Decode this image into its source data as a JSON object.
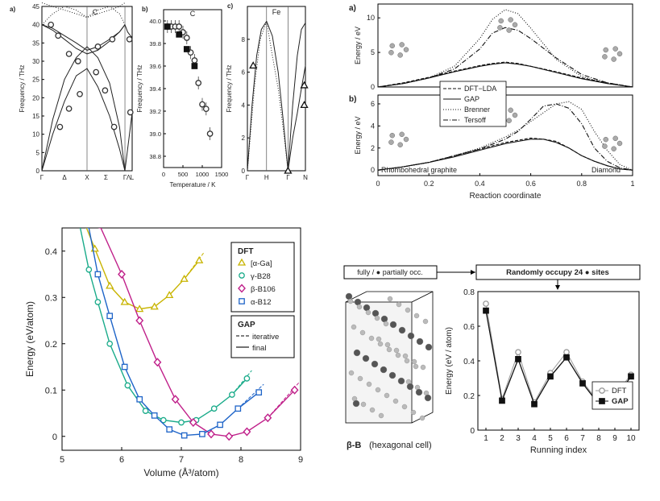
{
  "chart_data": [
    {
      "id": "phonon-C",
      "type": "line",
      "panel_label": "a)",
      "title": "C",
      "ylabel": "Frequency / THz",
      "ylim": [
        0,
        45
      ],
      "yticks": [
        "0",
        "5",
        "10",
        "15",
        "20",
        "25",
        "30",
        "35",
        "40",
        "45"
      ],
      "xticks": [
        "Γ",
        "Δ",
        "X",
        "Σ",
        "Γ",
        "Λ",
        "L"
      ],
      "kpos": [
        0,
        0.25,
        0.5,
        0.71,
        0.92,
        0.96,
        1
      ],
      "bands": [
        {
          "style": "solid",
          "x": [
            0,
            0.12,
            0.25,
            0.38,
            0.5,
            0.62,
            0.75,
            0.86,
            0.92
          ],
          "y": [
            0,
            10,
            19,
            26,
            28,
            23,
            15,
            6,
            0
          ]
        },
        {
          "style": "solid",
          "x": [
            0,
            0.12,
            0.25,
            0.38,
            0.5,
            0.62,
            0.75,
            0.86,
            0.92
          ],
          "y": [
            0,
            14,
            25,
            31,
            34,
            31,
            24,
            12,
            0
          ]
        },
        {
          "style": "solid",
          "x": [
            0,
            0.12,
            0.25,
            0.38,
            0.5,
            0.62,
            0.75,
            0.86,
            0.92
          ],
          "y": [
            40,
            39,
            37,
            35,
            33,
            34,
            36,
            38,
            40
          ]
        },
        {
          "style": "solid",
          "x": [
            0,
            0.12,
            0.25,
            0.38,
            0.5,
            0.62,
            0.75,
            0.86,
            0.92
          ],
          "y": [
            40,
            38.5,
            36,
            33.5,
            32,
            33,
            35.5,
            38,
            40
          ]
        },
        {
          "style": "solid",
          "x": [
            0.92,
            0.95,
            0.98,
            1
          ],
          "y": [
            0,
            6,
            12,
            16
          ]
        },
        {
          "style": "solid",
          "x": [
            0.92,
            0.95,
            0.98,
            1
          ],
          "y": [
            40,
            38,
            37,
            36.5
          ]
        },
        {
          "style": "dotted",
          "x": [
            0,
            0.12,
            0.25,
            0.38,
            0.5,
            0.62,
            0.75,
            0.86,
            0.92
          ],
          "y": [
            46,
            45,
            44,
            43,
            42,
            43,
            44,
            45,
            46
          ]
        },
        {
          "style": "dotted",
          "x": [
            0,
            0.12,
            0.25,
            0.38,
            0.5,
            0.62,
            0.75,
            0.86,
            0.92
          ],
          "y": [
            40,
            43,
            45,
            44,
            42,
            44,
            45,
            43,
            40
          ]
        }
      ],
      "markers": [
        {
          "x": 0.1,
          "y": 40
        },
        {
          "x": 0.18,
          "y": 37
        },
        {
          "x": 0.3,
          "y": 32
        },
        {
          "x": 0.4,
          "y": 30
        },
        {
          "x": 0.2,
          "y": 12
        },
        {
          "x": 0.3,
          "y": 17
        },
        {
          "x": 0.42,
          "y": 21
        },
        {
          "x": 0.6,
          "y": 27
        },
        {
          "x": 0.7,
          "y": 22
        },
        {
          "x": 0.8,
          "y": 12
        },
        {
          "x": 0.62,
          "y": 34
        },
        {
          "x": 0.78,
          "y": 36
        },
        {
          "x": 0.97,
          "y": 36
        },
        {
          "x": 0.98,
          "y": 16
        }
      ]
    },
    {
      "id": "freq-temp-C",
      "type": "scatter",
      "panel_label": "b)",
      "title": "C",
      "xlabel": "Temperature / K",
      "ylabel": "Frequency / THz",
      "xlim": [
        0,
        1500
      ],
      "ylim": [
        38.7,
        40.1
      ],
      "xticks": [
        "0",
        "500",
        "1000",
        "1500"
      ],
      "yticks": [
        "38.8",
        "39.0",
        "39.2",
        "39.4",
        "39.6",
        "39.8",
        "40.0"
      ],
      "series": [
        {
          "marker": "open-circle",
          "x": [
            100,
            200,
            300,
            400,
            500,
            600,
            700,
            800,
            900,
            1000,
            1100,
            1200
          ],
          "y": [
            39.95,
            39.95,
            39.95,
            39.95,
            39.9,
            39.85,
            39.72,
            39.65,
            39.45,
            39.26,
            39.22,
            39.0
          ]
        },
        {
          "marker": "filled-square",
          "x": [
            100,
            400,
            600,
            800
          ],
          "y": [
            39.95,
            39.88,
            39.75,
            39.6
          ]
        }
      ]
    },
    {
      "id": "phonon-Fe",
      "type": "line",
      "panel_label": "c)",
      "title": "Fe",
      "ylabel": "Frequency / THz",
      "ylim": [
        0,
        10
      ],
      "yticks": [
        "0",
        "2",
        "4",
        "6",
        "8"
      ],
      "xticks": [
        "Γ",
        "H",
        "Γ",
        "N"
      ],
      "kpos": [
        0,
        0.33,
        0.7,
        1
      ],
      "bands": [
        {
          "style": "solid",
          "x": [
            0,
            0.08,
            0.16,
            0.24,
            0.33
          ],
          "y": [
            0,
            4,
            7,
            8.6,
            9.1
          ]
        },
        {
          "style": "solid",
          "x": [
            0.33,
            0.43,
            0.53,
            0.62,
            0.7
          ],
          "y": [
            9.1,
            8.2,
            6,
            3,
            0
          ]
        },
        {
          "style": "solid",
          "x": [
            0.7,
            0.78,
            0.86,
            0.93,
            1
          ],
          "y": [
            0,
            4,
            7,
            8.6,
            9
          ]
        },
        {
          "style": "solid",
          "x": [
            0.7,
            0.78,
            0.86,
            0.93,
            1
          ],
          "y": [
            0,
            2,
            3.5,
            5,
            6.4
          ]
        },
        {
          "style": "dotted",
          "x": [
            0.33,
            0.43,
            0.53,
            0.62,
            0.7
          ],
          "y": [
            9.1,
            7,
            5,
            2.5,
            0
          ]
        },
        {
          "style": "dotted",
          "x": [
            0,
            0.12,
            0.22,
            0.33
          ],
          "y": [
            0,
            5,
            8,
            9.1
          ]
        }
      ],
      "markers": [
        {
          "x": 0.1,
          "y": 6.4
        },
        {
          "x": 0.7,
          "y": 0
        },
        {
          "x": 0.98,
          "y": 5.2
        },
        {
          "x": 0.98,
          "y": 4
        }
      ]
    },
    {
      "id": "reaction-a",
      "type": "line",
      "panel_label": "a)",
      "ylabel": "Energy / eV",
      "ylim": [
        0,
        12
      ],
      "yticks": [
        "0",
        "5",
        "10"
      ],
      "x": [
        0,
        0.1,
        0.2,
        0.3,
        0.4,
        0.45,
        0.5,
        0.55,
        0.6,
        0.7,
        0.8,
        0.9,
        1
      ],
      "series": [
        {
          "name": "DFT−LDA",
          "style": "dashed",
          "y": [
            0,
            0.6,
            1.4,
            2.3,
            3.1,
            3.4,
            3.6,
            3.4,
            3.0,
            2.2,
            1.3,
            0.6,
            0
          ]
        },
        {
          "name": "GAP",
          "style": "solid",
          "y": [
            0,
            0.5,
            1.3,
            2.2,
            3.0,
            3.3,
            3.5,
            3.3,
            3.0,
            2.1,
            1.2,
            0.5,
            0
          ]
        },
        {
          "name": "Brenner",
          "style": "dotted",
          "y": [
            0,
            0.5,
            1.3,
            3.0,
            7.0,
            9.8,
            11.2,
            10.6,
            8.5,
            4.0,
            1.5,
            0.5,
            0
          ]
        },
        {
          "name": "Tersoff",
          "style": "dashdot",
          "y": [
            0,
            0.5,
            1.3,
            2.6,
            5.5,
            7.8,
            8.6,
            8.2,
            7.0,
            4.2,
            1.8,
            0.6,
            0
          ]
        }
      ]
    },
    {
      "id": "reaction-b",
      "type": "line",
      "panel_label": "b)",
      "xlabel": "Reaction coordinate",
      "ylabel": "Energy / eV",
      "ylim": [
        -0.5,
        6.8
      ],
      "xlim": [
        0,
        1
      ],
      "yticks": [
        "0",
        "2",
        "4",
        "6"
      ],
      "xticks": [
        "0",
        "0.2",
        "0.4",
        "0.6",
        "0.8",
        "1"
      ],
      "annotations": [
        "Rhombohedral graphite",
        "Diamond"
      ],
      "x": [
        0,
        0.1,
        0.2,
        0.3,
        0.4,
        0.5,
        0.55,
        0.6,
        0.65,
        0.7,
        0.75,
        0.8,
        0.85,
        0.9,
        0.95,
        1
      ],
      "series": [
        {
          "name": "DFT−LDA",
          "style": "dashed",
          "y": [
            0,
            0.3,
            0.7,
            1.3,
            1.9,
            2.5,
            2.7,
            2.9,
            2.8,
            2.6,
            2.0,
            1.3,
            0.8,
            0.4,
            0.1,
            0
          ]
        },
        {
          "name": "GAP",
          "style": "solid",
          "y": [
            0,
            0.3,
            0.7,
            1.2,
            1.8,
            2.4,
            2.6,
            2.8,
            2.8,
            2.5,
            2.0,
            1.3,
            0.8,
            0.4,
            0.1,
            0
          ]
        },
        {
          "name": "Brenner",
          "style": "dotted",
          "y": [
            0,
            0.3,
            0.7,
            1.3,
            2.0,
            3.0,
            3.6,
            4.4,
            5.2,
            6.0,
            6.2,
            5.5,
            3.5,
            1.8,
            0.5,
            0
          ]
        },
        {
          "name": "Tersoff",
          "style": "dashdot",
          "y": [
            0,
            0.3,
            0.7,
            1.3,
            1.9,
            2.8,
            3.5,
            4.6,
            5.8,
            6.0,
            5.6,
            4.2,
            2.0,
            0.8,
            0.2,
            0
          ]
        }
      ],
      "legend": [
        "DFT−LDA",
        "GAP",
        "Brenner",
        "Tersoff"
      ]
    },
    {
      "id": "boron-eos",
      "type": "scatter",
      "xlabel": "Volume (Å³/atom)",
      "ylabel": "Energy (eV/atom)",
      "xlim": [
        5,
        9
      ],
      "ylim": [
        -0.03,
        0.45
      ],
      "xticks": [
        "5",
        "6",
        "7",
        "8",
        "9"
      ],
      "yticks": [
        "0",
        "0.1",
        "0.2",
        "0.3",
        "0.4"
      ],
      "legend_title": "DFT",
      "legend2_title": "GAP",
      "legend2": [
        "iterative",
        "final"
      ],
      "series": [
        {
          "name": "[α-Ga]",
          "color": "#c8b400",
          "marker": "triangle",
          "x": [
            5.55,
            5.8,
            6.05,
            6.3,
            6.55,
            6.8,
            7.05,
            7.3
          ],
          "y": [
            0.405,
            0.325,
            0.29,
            0.275,
            0.28,
            0.305,
            0.34,
            0.38
          ]
        },
        {
          "name": "γ-B28",
          "color": "#1aab8a",
          "marker": "circle",
          "x": [
            5.45,
            5.6,
            5.8,
            6.1,
            6.4,
            6.7,
            7.0,
            7.25,
            7.55,
            7.85,
            8.1
          ],
          "y": [
            0.36,
            0.29,
            0.2,
            0.11,
            0.055,
            0.035,
            0.03,
            0.035,
            0.06,
            0.09,
            0.125
          ]
        },
        {
          "name": "β-B106",
          "color": "#c0208a",
          "marker": "diamond",
          "x": [
            5.65,
            6.0,
            6.3,
            6.6,
            6.9,
            7.2,
            7.5,
            7.8,
            8.1,
            8.45,
            8.9
          ],
          "y": [
            0.45,
            0.35,
            0.25,
            0.16,
            0.08,
            0.03,
            0.005,
            0.0,
            0.01,
            0.04,
            0.1
          ]
        },
        {
          "name": "α-B12",
          "color": "#1e64c8",
          "marker": "square",
          "x": [
            5.45,
            5.6,
            5.8,
            6.05,
            6.3,
            6.55,
            6.8,
            7.05,
            7.35,
            7.65,
            7.95,
            8.3
          ],
          "y": [
            0.45,
            0.35,
            0.26,
            0.15,
            0.08,
            0.045,
            0.015,
            0.002,
            0.005,
            0.025,
            0.06,
            0.095
          ]
        }
      ]
    },
    {
      "id": "boron-occupancy",
      "type": "line",
      "xlabel": "Running index",
      "ylabel": "Energy (eV / atom)",
      "xlim": [
        0.5,
        10.5
      ],
      "ylim": [
        0,
        0.8
      ],
      "xticks": [
        "1",
        "2",
        "3",
        "4",
        "5",
        "6",
        "7",
        "8",
        "9",
        "10"
      ],
      "yticks": [
        "0",
        "0.2",
        "0.4",
        "0.6",
        "0.8"
      ],
      "x": [
        1,
        2,
        3,
        4,
        5,
        6,
        7,
        8,
        9,
        10
      ],
      "series": [
        {
          "name": "DFT",
          "marker": "open-circle",
          "color": "#999999",
          "y": [
            0.73,
            0.18,
            0.45,
            0.16,
            0.33,
            0.45,
            0.28,
            0.16,
            0.2,
            0.32
          ]
        },
        {
          "name": "GAP",
          "marker": "filled-square",
          "color": "#111111",
          "y": [
            0.69,
            0.17,
            0.41,
            0.15,
            0.31,
            0.42,
            0.27,
            0.15,
            0.18,
            0.31
          ]
        }
      ]
    }
  ],
  "schematic": {
    "box1": "fully / ● partially occ.",
    "box2": "Randomly occupy 24 ● sites",
    "caption_bold": "β-B",
    "caption_rest": "(hexagonal cell)"
  }
}
